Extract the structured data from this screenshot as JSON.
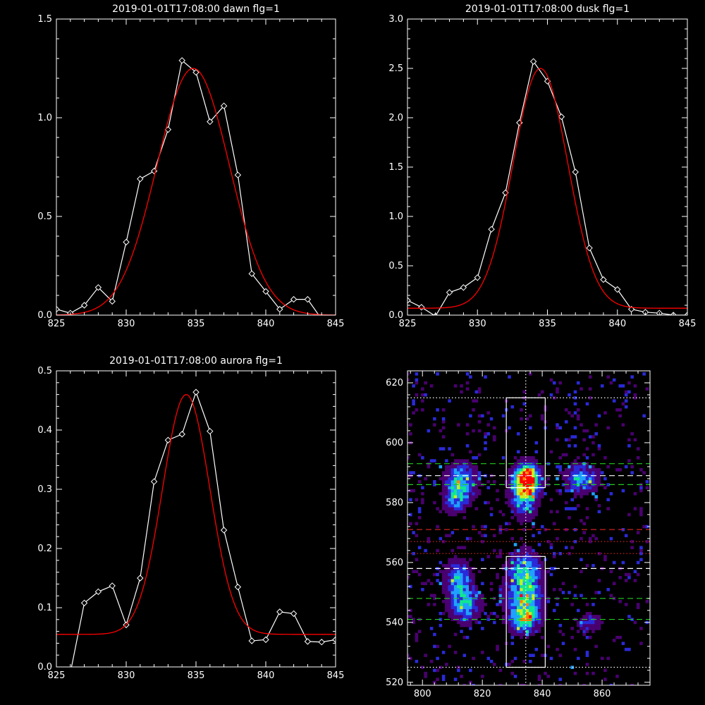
{
  "chart_data": [
    {
      "type": "line",
      "title": "2019-01-01T17:08:00 dawn flg=1",
      "xlim": [
        825,
        845
      ],
      "ylim": [
        0,
        1.5
      ],
      "xticks": [
        825,
        830,
        835,
        840,
        845
      ],
      "yticks": [
        0.0,
        0.5,
        1.0,
        1.5
      ],
      "xtick_labels": [
        "825",
        "830",
        "835",
        "840",
        "845"
      ],
      "ytick_labels": [
        "0.0",
        "0.5",
        "1.0",
        "1.5"
      ],
      "series": [
        {
          "style": "line-with-diamonds",
          "color": "#ffffff",
          "x": [
            825,
            826,
            827,
            828,
            829,
            830,
            831,
            832,
            833,
            834,
            835,
            836,
            837,
            838,
            839,
            840,
            841,
            842,
            843,
            844,
            845
          ],
          "y": [
            0.03,
            0.01,
            0.05,
            0.14,
            0.07,
            0.37,
            0.69,
            0.73,
            0.94,
            1.29,
            1.23,
            0.98,
            1.06,
            0.71,
            0.21,
            0.12,
            0.03,
            0.08,
            0.08,
            -0.02,
            -0.04
          ]
        },
        {
          "style": "gaussian-fit",
          "color": "#ff0000",
          "amplitude": 1.25,
          "center": 834.8,
          "sigma": 2.6,
          "offset": 0.0
        }
      ]
    },
    {
      "type": "line",
      "title": "2019-01-01T17:08:00 dusk flg=1",
      "xlim": [
        825,
        845
      ],
      "ylim": [
        0,
        3.0
      ],
      "xticks": [
        825,
        830,
        835,
        840,
        845
      ],
      "yticks": [
        0.0,
        0.5,
        1.0,
        1.5,
        2.0,
        2.5,
        3.0
      ],
      "xtick_labels": [
        "825",
        "830",
        "835",
        "840",
        "845"
      ],
      "ytick_labels": [
        "0.0",
        "0.5",
        "1.0",
        "1.5",
        "2.0",
        "2.5",
        "3.0"
      ],
      "series": [
        {
          "style": "line-with-diamonds",
          "color": "#ffffff",
          "x": [
            825,
            826,
            827,
            828,
            829,
            830,
            831,
            832,
            833,
            834,
            835,
            836,
            837,
            838,
            839,
            840,
            841,
            842,
            843,
            844,
            845
          ],
          "y": [
            0.15,
            0.08,
            -0.01,
            0.23,
            0.28,
            0.38,
            0.87,
            1.24,
            1.95,
            2.57,
            2.37,
            2.01,
            1.45,
            0.68,
            0.36,
            0.26,
            0.06,
            0.03,
            0.02,
            0.0,
            0.0
          ]
        },
        {
          "style": "gaussian-fit",
          "color": "#ff0000",
          "amplitude": 2.43,
          "center": 834.5,
          "sigma": 1.95,
          "offset": 0.07
        }
      ]
    },
    {
      "type": "line",
      "title": "2019-01-01T17:08:00 aurora flg=1",
      "xlim": [
        825,
        845
      ],
      "ylim": [
        0,
        0.5
      ],
      "xticks": [
        825,
        830,
        835,
        840,
        845
      ],
      "yticks": [
        0.0,
        0.1,
        0.2,
        0.3,
        0.4,
        0.5
      ],
      "xtick_labels": [
        "825",
        "830",
        "835",
        "840",
        "845"
      ],
      "ytick_labels": [
        "0.0",
        "0.1",
        "0.2",
        "0.3",
        "0.4",
        "0.5"
      ],
      "series": [
        {
          "style": "line-with-diamonds",
          "color": "#ffffff",
          "x": [
            826,
            827,
            828,
            829,
            830,
            831,
            832,
            833,
            834,
            835,
            836,
            837,
            838,
            839,
            840,
            841,
            842,
            843,
            844,
            845
          ],
          "y": [
            -0.01,
            0.108,
            0.127,
            0.137,
            0.071,
            0.15,
            0.313,
            0.383,
            0.393,
            0.464,
            0.398,
            0.231,
            0.135,
            0.044,
            0.046,
            0.093,
            0.09,
            0.043,
            0.042,
            0.046
          ]
        },
        {
          "style": "gaussian-fit",
          "color": "#ff0000",
          "amplitude": 0.405,
          "center": 834.3,
          "sigma": 1.7,
          "offset": 0.055
        }
      ]
    },
    {
      "type": "heatmap",
      "xlim": [
        795,
        876
      ],
      "ylim": [
        519,
        624
      ],
      "xticks": [
        800,
        820,
        840,
        860
      ],
      "yticks": [
        520,
        540,
        560,
        580,
        600,
        620
      ],
      "xtick_labels": [
        "800",
        "820",
        "840",
        "860"
      ],
      "ytick_labels": [
        "520",
        "540",
        "560",
        "580",
        "600",
        "620"
      ],
      "colormap": [
        "#000000",
        "#4a0070",
        "#2a2ad8",
        "#1fa2ff",
        "#10e890",
        "#c8f020",
        "#ff8000",
        "#ff0000"
      ],
      "hotspots": [
        {
          "x": 835,
          "y": 588,
          "sx": 2.5,
          "sy": 3.0,
          "amp": 1.0
        },
        {
          "x": 834,
          "y": 583,
          "sx": 3.0,
          "sy": 5.0,
          "amp": 0.55
        },
        {
          "x": 813,
          "y": 587,
          "sx": 3.5,
          "sy": 4.0,
          "amp": 0.5
        },
        {
          "x": 811,
          "y": 581,
          "sx": 2.5,
          "sy": 3.0,
          "amp": 0.35
        },
        {
          "x": 853,
          "y": 588,
          "sx": 3.5,
          "sy": 3.5,
          "amp": 0.4
        },
        {
          "x": 834,
          "y": 558,
          "sx": 3.5,
          "sy": 4.0,
          "amp": 0.45
        },
        {
          "x": 834,
          "y": 548,
          "sx": 4.0,
          "sy": 5.0,
          "amp": 0.55
        },
        {
          "x": 834,
          "y": 541,
          "sx": 3.0,
          "sy": 3.0,
          "amp": 0.5
        },
        {
          "x": 812,
          "y": 555,
          "sx": 3.0,
          "sy": 4.0,
          "amp": 0.4
        },
        {
          "x": 814,
          "y": 546,
          "sx": 3.5,
          "sy": 4.0,
          "amp": 0.45
        },
        {
          "x": 856,
          "y": 540,
          "sx": 2.5,
          "sy": 2.0,
          "amp": 0.3
        }
      ],
      "boxes": [
        {
          "x0": 828,
          "x1": 841,
          "y0": 585,
          "y1": 615
        },
        {
          "x0": 828,
          "x1": 841,
          "y0": 525,
          "y1": 562
        }
      ],
      "lines": [
        {
          "orientation": "vertical",
          "value": 834.5,
          "color": "#ffffff",
          "style": "dotted"
        },
        {
          "orientation": "horizontal",
          "value": 615,
          "color": "#ffffff",
          "style": "dotted"
        },
        {
          "orientation": "horizontal",
          "value": 525,
          "color": "#ffffff",
          "style": "dotted"
        },
        {
          "orientation": "horizontal",
          "value": 593,
          "color": "#22cc22",
          "style": "dashed"
        },
        {
          "orientation": "horizontal",
          "value": 589,
          "color": "#ffffff",
          "style": "dashed"
        },
        {
          "orientation": "horizontal",
          "value": 586,
          "color": "#22cc22",
          "style": "dashed"
        },
        {
          "orientation": "horizontal",
          "value": 571,
          "color": "#cc2222",
          "style": "dashed"
        },
        {
          "orientation": "horizontal",
          "value": 567,
          "color": "#cc2222",
          "style": "dotted"
        },
        {
          "orientation": "horizontal",
          "value": 563,
          "color": "#cc2222",
          "style": "dotted"
        },
        {
          "orientation": "horizontal",
          "value": 558,
          "color": "#ffffff",
          "style": "dashed"
        },
        {
          "orientation": "horizontal",
          "value": 548,
          "color": "#22cc22",
          "style": "dashed"
        },
        {
          "orientation": "horizontal",
          "value": 541,
          "color": "#22cc22",
          "style": "dashed"
        }
      ]
    }
  ]
}
